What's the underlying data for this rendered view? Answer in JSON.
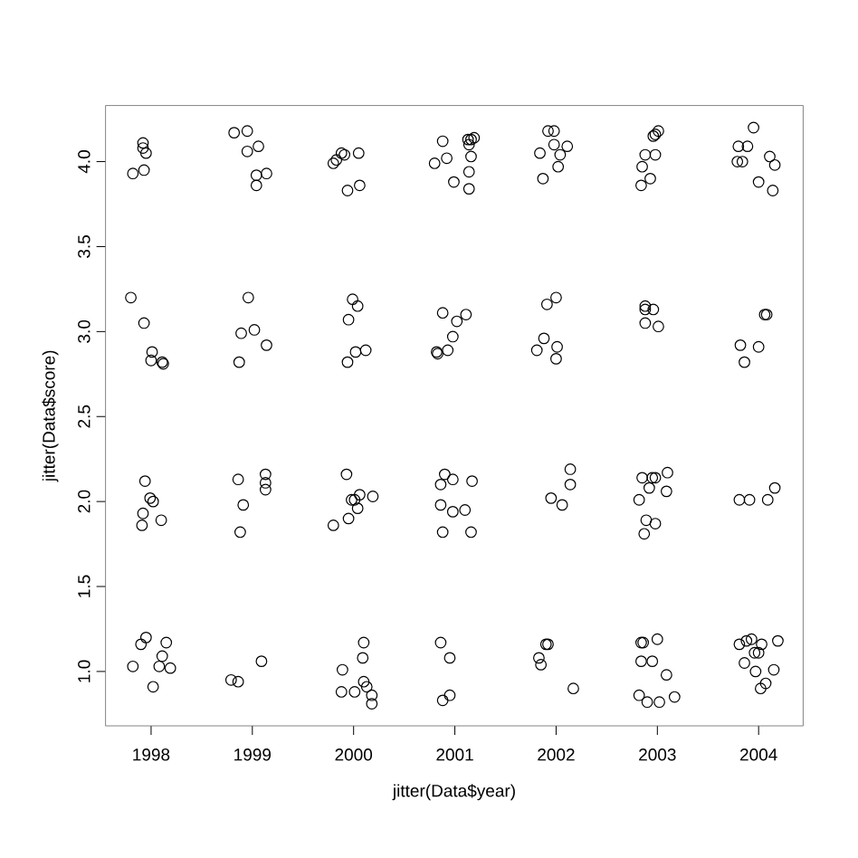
{
  "chart_data": {
    "type": "scatter",
    "xlabel": "jitter(Data$year)",
    "ylabel": "jitter(Data$score)",
    "xlim": [
      1997.55,
      2004.44
    ],
    "ylim": [
      0.68,
      4.33
    ],
    "xticks": [
      1998,
      1999,
      2000,
      2001,
      2002,
      2003,
      2004
    ],
    "yticks": [
      {
        "value": 1,
        "label": "1.0"
      },
      {
        "value": 1.5,
        "label": "1.5"
      },
      {
        "value": 2,
        "label": "2.0"
      },
      {
        "value": 2.5,
        "label": "2.5"
      },
      {
        "value": 3,
        "label": "3.0"
      },
      {
        "value": 3.5,
        "label": "3.5"
      },
      {
        "value": 4,
        "label": "4.0"
      }
    ],
    "marker": "circle",
    "series": [
      {
        "color": "#000000",
        "x": [
          1997.92,
          1997.95,
          1997.93,
          1997.82,
          1997.92,
          1998.82,
          1998.95,
          1998.95,
          1999.06,
          1999.04,
          1999.14,
          1999.04,
          1999.8,
          1999.83,
          1999.88,
          1999.91,
          2000.05,
          2000.06,
          1999.94,
          1997.8,
          1997.93,
          1998.01,
          1998.0,
          1998.11,
          1998.12,
          1998.96,
          1999.02,
          1998.89,
          1999.14,
          1998.87,
          1999.99,
          2000.04,
          1999.95,
          2000.02,
          2000.12,
          1999.94,
          1997.94,
          1997.99,
          1998.02,
          1997.92,
          1997.91,
          1998.1,
          1998.86,
          1998.91,
          1998.88,
          1999.13,
          1999.13,
          1999.13,
          1999.8,
          1999.95,
          1999.93,
          1999.98,
          2000.01,
          2000.04,
          2000.06,
          2000.19,
          1997.82,
          1997.9,
          1997.95,
          1998.15,
          1998.08,
          1998.11,
          1998.02,
          1998.19,
          1998.79,
          1998.86,
          1999.09,
          1999.89,
          1999.88,
          2000.01,
          2000.1,
          2000.09,
          2000.1,
          2000.13,
          2000.18,
          2000.18,
          2000.88,
          2000.92,
          2000.8,
          2000.99,
          2001.14,
          2001.14,
          2001.16,
          2001.16,
          2001.19,
          2001.13,
          2001.14,
          2001.92,
          2001.98,
          2001.98,
          2002.11,
          2002.04,
          2001.84,
          2002.02,
          2001.87,
          2003.01,
          2002.98,
          2002.96,
          2002.88,
          2002.98,
          2002.85,
          2002.93,
          2002.84,
          2003.95,
          2003.8,
          2003.89,
          2003.79,
          2003.84,
          2004.11,
          2004.16,
          2004.0,
          2004.14,
          2000.88,
          2001.02,
          2001.11,
          2000.98,
          2000.93,
          2000.82,
          2000.83,
          2002.0,
          2001.91,
          2001.88,
          2001.81,
          2002.01,
          2002.0,
          2002.88,
          2002.88,
          2002.96,
          2002.88,
          2003.01,
          2004.06,
          2004.08,
          2003.82,
          2004.0,
          2003.86,
          2000.9,
          2000.86,
          2000.98,
          2001.17,
          2000.86,
          2000.98,
          2001.1,
          2000.88,
          2001.16,
          2002.14,
          2002.14,
          2001.95,
          2002.06,
          2002.85,
          2002.95,
          2002.98,
          2003.1,
          2002.92,
          2003.09,
          2002.82,
          2002.89,
          2002.98,
          2002.87,
          2003.81,
          2003.91,
          2004.09,
          2004.16,
          2000.86,
          2000.95,
          2000.95,
          2000.88,
          2001.9,
          2001.92,
          2001.83,
          2001.85,
          2002.17,
          2002.84,
          2002.86,
          2003.0,
          2002.84,
          2002.95,
          2003.09,
          2002.82,
          2002.9,
          2003.02,
          2003.17,
          2003.81,
          2003.88,
          2003.93,
          2004.03,
          2004.19,
          2003.96,
          2004.0,
          2003.86,
          2003.97,
          2004.15,
          2004.02,
          2004.07
        ],
        "values": [
          4.11,
          4.05,
          3.95,
          3.93,
          4.08,
          4.17,
          4.18,
          4.06,
          4.09,
          3.92,
          3.93,
          3.86,
          3.99,
          4.01,
          4.05,
          4.04,
          4.05,
          3.86,
          3.83,
          3.2,
          3.05,
          2.88,
          2.83,
          2.82,
          2.81,
          3.2,
          3.01,
          2.99,
          2.92,
          2.82,
          3.19,
          3.15,
          3.07,
          2.88,
          2.89,
          2.82,
          2.12,
          2.02,
          2.0,
          1.93,
          1.86,
          1.89,
          2.13,
          1.98,
          1.82,
          2.16,
          2.11,
          2.07,
          1.86,
          1.9,
          2.16,
          2.01,
          2.01,
          1.96,
          2.04,
          2.03,
          1.03,
          1.16,
          1.2,
          1.17,
          1.03,
          1.09,
          0.91,
          1.02,
          0.95,
          0.94,
          1.06,
          1.01,
          0.88,
          0.88,
          1.17,
          1.08,
          0.94,
          0.91,
          0.86,
          0.81,
          4.12,
          4.02,
          3.99,
          3.88,
          3.84,
          3.94,
          4.03,
          4.13,
          4.14,
          4.13,
          4.1,
          4.18,
          4.18,
          4.1,
          4.09,
          4.04,
          4.05,
          3.97,
          3.9,
          4.18,
          4.16,
          4.15,
          4.04,
          4.04,
          3.97,
          3.9,
          3.86,
          4.2,
          4.09,
          4.09,
          4.0,
          4.0,
          4.03,
          3.98,
          3.88,
          3.83,
          3.11,
          3.06,
          3.1,
          2.97,
          2.89,
          2.88,
          2.87,
          3.2,
          3.16,
          2.96,
          2.89,
          2.91,
          2.84,
          3.15,
          3.13,
          3.13,
          3.05,
          3.03,
          3.1,
          3.1,
          2.92,
          2.91,
          2.82,
          2.16,
          2.1,
          2.13,
          2.12,
          1.98,
          1.94,
          1.95,
          1.82,
          1.82,
          2.19,
          2.1,
          2.02,
          1.98,
          2.14,
          2.14,
          2.14,
          2.17,
          2.08,
          2.06,
          2.01,
          1.89,
          1.87,
          1.81,
          2.01,
          2.01,
          2.01,
          2.08,
          1.17,
          1.08,
          0.86,
          0.83,
          1.16,
          1.16,
          1.08,
          1.04,
          0.9,
          1.17,
          1.17,
          1.19,
          1.06,
          1.06,
          0.98,
          0.86,
          0.82,
          0.82,
          0.85,
          1.16,
          1.18,
          1.19,
          1.16,
          1.18,
          1.11,
          1.11,
          1.05,
          1.0,
          1.01,
          0.9,
          0.93
        ]
      }
    ]
  }
}
